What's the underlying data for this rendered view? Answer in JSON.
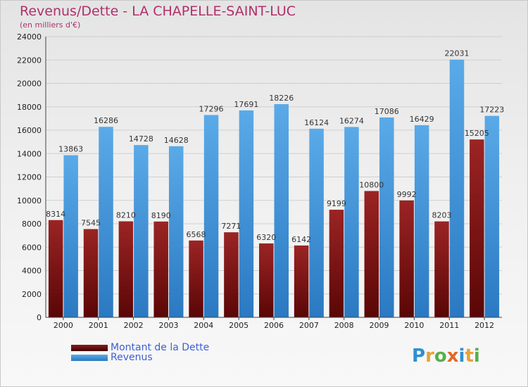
{
  "title": "Revenus/Dette - LA CHAPELLE-SAINT-LUC",
  "subtitle": "(en milliers d'€)",
  "colors": {
    "dette": "#8b1010",
    "revenus": "#3e8fd6",
    "title": "#b0306a",
    "legend_text": "#3f5fd2"
  },
  "legend": {
    "items": [
      {
        "label": "Montant de la Dette",
        "color": "#6b0f0f"
      },
      {
        "label": "Revenus",
        "color": "#3e8fd6"
      }
    ]
  },
  "logo": {
    "letters": [
      {
        "char": "P",
        "color": "#2f8fd0"
      },
      {
        "char": "r",
        "color": "#e8a13a"
      },
      {
        "char": "o",
        "color": "#55b04b"
      },
      {
        "char": "x",
        "color": "#e06a2a"
      },
      {
        "char": "i",
        "color": "#2f8fd0"
      },
      {
        "char": "t",
        "color": "#e8a13a"
      },
      {
        "char": "i",
        "color": "#55b04b"
      }
    ]
  },
  "chart_data": {
    "type": "bar",
    "title": "Revenus/Dette - LA CHAPELLE-SAINT-LUC",
    "subtitle": "(en milliers d'€)",
    "categories": [
      "2000",
      "2001",
      "2002",
      "2003",
      "2004",
      "2005",
      "2006",
      "2007",
      "2008",
      "2009",
      "2010",
      "2011",
      "2012"
    ],
    "series": [
      {
        "name": "Montant de la Dette",
        "values": [
          8314,
          7545,
          8210,
          8190,
          6568,
          7271,
          6320,
          6142,
          9199,
          10800,
          9992,
          8203,
          15205
        ],
        "labels": [
          "8314",
          "7545",
          "8210",
          "8190",
          "6568",
          "7271",
          "6320",
          "6142",
          "9199",
          "10800",
          "9992",
          "8203",
          "15205"
        ]
      },
      {
        "name": "Revenus",
        "values": [
          13863,
          16286,
          14728,
          14628,
          17296,
          17691,
          18226,
          16124,
          16274,
          17086,
          16429,
          22031,
          17223
        ],
        "labels": [
          "13863",
          "16286",
          "14728",
          "14628",
          "17296",
          "17691",
          "18226",
          "16124",
          "16274",
          "17086",
          "16429",
          "22031",
          "17223"
        ]
      }
    ],
    "ylim": [
      0,
      24000
    ],
    "yticks": [
      0,
      2000,
      4000,
      6000,
      8000,
      10000,
      12000,
      14000,
      16000,
      18000,
      20000,
      22000,
      24000
    ],
    "grid": true,
    "legend_position": "bottom-left"
  }
}
